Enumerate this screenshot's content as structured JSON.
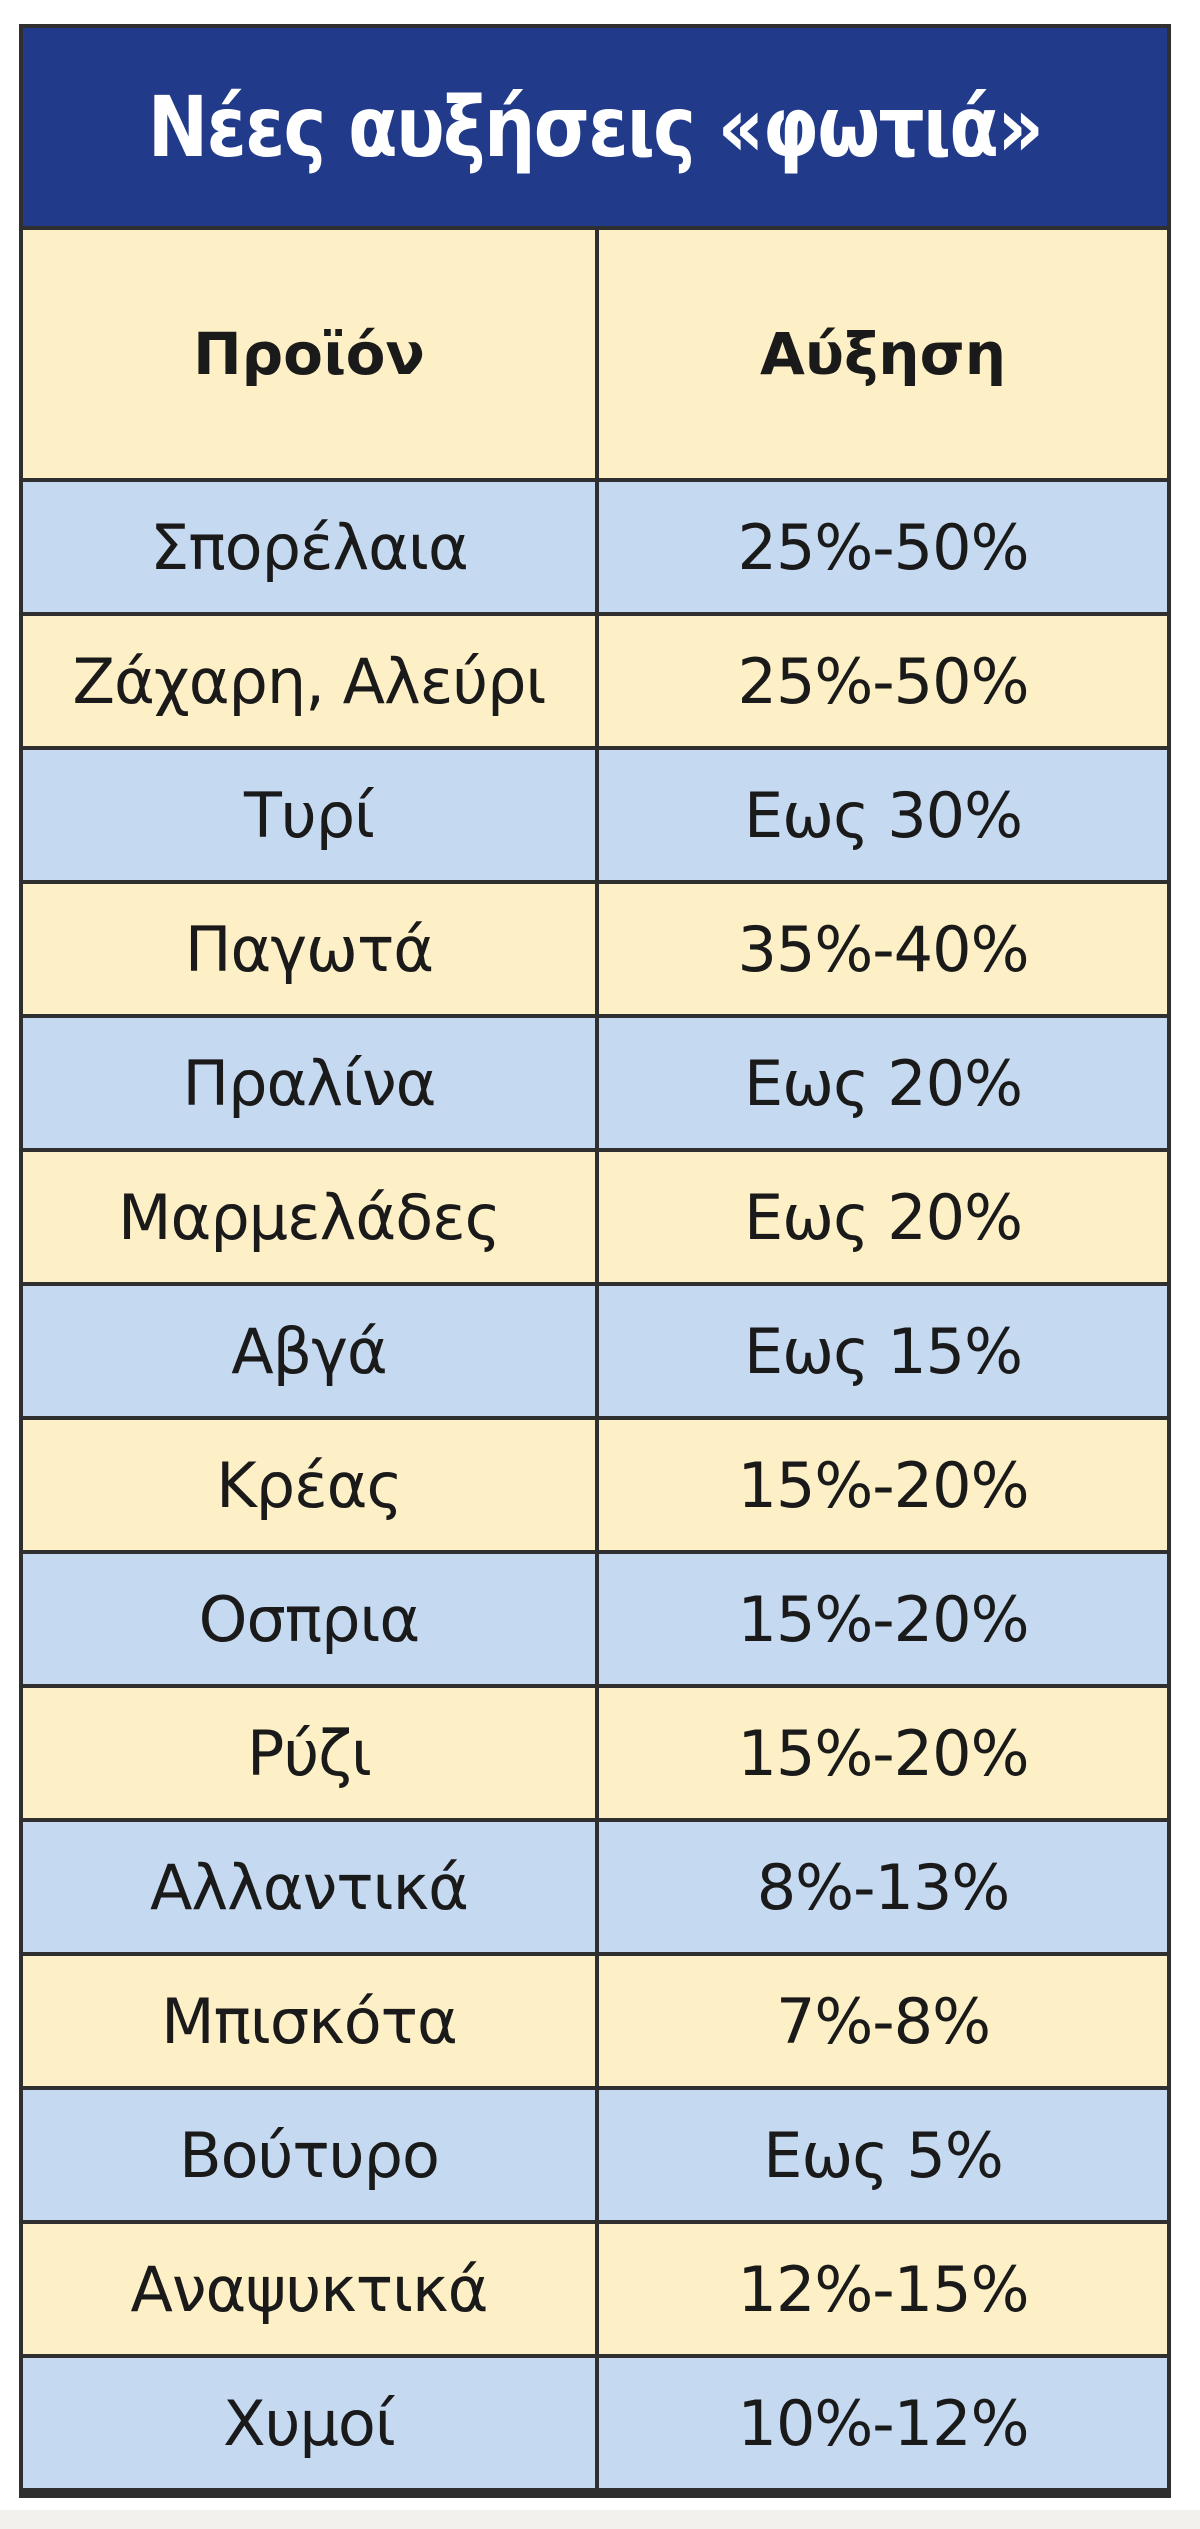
{
  "title": "Νέες αυξήσεις «φωτιά»",
  "colors": {
    "title_background": "#213a8a",
    "title_text": "#ffffff",
    "row_blue": "#c5d9f1",
    "row_cream": "#fdf0c6",
    "grid": "#2f2f2f"
  },
  "chart_data": {
    "type": "table",
    "title": "Νέες αυξήσεις «φωτιά»",
    "columns": [
      "Προϊόν",
      "Αύξηση"
    ],
    "rows": [
      [
        "Σπορέλαια",
        "25%-50%"
      ],
      [
        "Ζάχαρη, Αλεύρι",
        "25%-50%"
      ],
      [
        "Τυρί",
        "Εως 30%"
      ],
      [
        "Παγωτά",
        "35%-40%"
      ],
      [
        "Πραλίνα",
        "Εως 20%"
      ],
      [
        "Μαρμελάδες",
        "Εως 20%"
      ],
      [
        "Αβγά",
        "Εως 15%"
      ],
      [
        "Κρέας",
        "15%-20%"
      ],
      [
        "Οσπρια",
        "15%-20%"
      ],
      [
        "Ρύζι",
        "15%-20%"
      ],
      [
        "Αλλαντικά",
        "8%-13%"
      ],
      [
        "Μπισκότα",
        "7%-8%"
      ],
      [
        "Βούτυρο",
        "Εως 5%"
      ],
      [
        "Αναψυκτικά",
        "12%-15%"
      ],
      [
        "Χυμοί",
        "10%-12%"
      ]
    ]
  }
}
